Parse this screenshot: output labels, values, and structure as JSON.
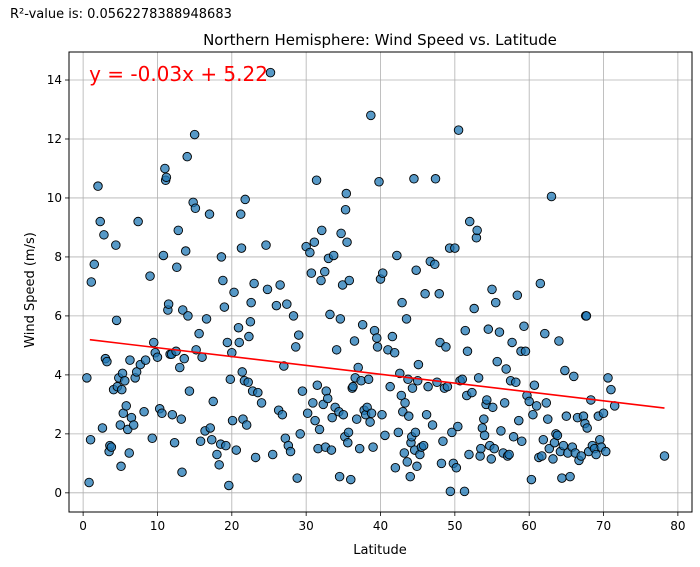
{
  "r2_text": "R²-value is: 0.0562278388948683",
  "chart_data": {
    "type": "scatter",
    "title": "Northern Hemisphere: Wind Speed vs. Latitude",
    "xlabel": "Latitude",
    "ylabel": "Wind Speed (m/s)",
    "xlim": [
      -1.9,
      81.9
    ],
    "ylim": [
      -0.65,
      14.95
    ],
    "xticks": [
      0,
      10,
      20,
      30,
      40,
      50,
      60,
      70,
      80
    ],
    "yticks": [
      0,
      2,
      4,
      6,
      8,
      10,
      12,
      14
    ],
    "grid": true,
    "regression": {
      "equation": "y = -0.03x + 5.22",
      "slope": -0.03,
      "intercept": 5.22,
      "x_range": [
        0.9,
        78.2
      ],
      "color": "#ff0000"
    },
    "point_color": "#1f77b4",
    "points": [
      [
        0.5,
        3.9
      ],
      [
        0.8,
        0.35
      ],
      [
        1.0,
        1.8
      ],
      [
        1.1,
        7.15
      ],
      [
        1.5,
        7.75
      ],
      [
        2.0,
        10.4
      ],
      [
        2.3,
        9.2
      ],
      [
        2.6,
        2.2
      ],
      [
        2.8,
        8.75
      ],
      [
        3.0,
        4.55
      ],
      [
        3.2,
        4.45
      ],
      [
        3.5,
        1.4
      ],
      [
        3.6,
        1.6
      ],
      [
        3.8,
        1.55
      ],
      [
        4.1,
        3.5
      ],
      [
        4.4,
        8.4
      ],
      [
        4.5,
        5.85
      ],
      [
        4.6,
        3.6
      ],
      [
        4.8,
        3.9
      ],
      [
        5.0,
        2.3
      ],
      [
        5.1,
        0.9
      ],
      [
        5.2,
        3.5
      ],
      [
        5.3,
        4.05
      ],
      [
        5.4,
        2.7
      ],
      [
        5.6,
        3.8
      ],
      [
        5.8,
        2.95
      ],
      [
        6.0,
        2.15
      ],
      [
        6.2,
        1.35
      ],
      [
        6.3,
        4.5
      ],
      [
        6.5,
        2.55
      ],
      [
        6.8,
        2.3
      ],
      [
        7.0,
        3.9
      ],
      [
        7.2,
        4.1
      ],
      [
        7.4,
        9.2
      ],
      [
        7.7,
        4.35
      ],
      [
        8.2,
        2.75
      ],
      [
        8.4,
        4.5
      ],
      [
        9.0,
        7.35
      ],
      [
        9.3,
        1.85
      ],
      [
        9.5,
        5.1
      ],
      [
        9.7,
        4.75
      ],
      [
        10.0,
        4.6
      ],
      [
        10.3,
        2.85
      ],
      [
        10.6,
        2.7
      ],
      [
        10.8,
        8.05
      ],
      [
        11.0,
        11.0
      ],
      [
        11.1,
        10.6
      ],
      [
        11.2,
        10.7
      ],
      [
        11.4,
        6.2
      ],
      [
        11.5,
        6.4
      ],
      [
        11.7,
        4.7
      ],
      [
        11.9,
        4.7
      ],
      [
        12.0,
        2.65
      ],
      [
        12.3,
        1.7
      ],
      [
        12.5,
        4.8
      ],
      [
        12.6,
        7.65
      ],
      [
        12.8,
        8.9
      ],
      [
        13.0,
        4.25
      ],
      [
        13.2,
        2.5
      ],
      [
        13.3,
        0.7
      ],
      [
        13.4,
        6.2
      ],
      [
        13.6,
        4.55
      ],
      [
        13.8,
        8.2
      ],
      [
        14.0,
        11.4
      ],
      [
        14.1,
        6.0
      ],
      [
        14.3,
        3.45
      ],
      [
        14.8,
        9.85
      ],
      [
        15.0,
        12.15
      ],
      [
        15.1,
        9.65
      ],
      [
        15.2,
        4.85
      ],
      [
        15.6,
        5.4
      ],
      [
        15.8,
        1.75
      ],
      [
        16.0,
        4.6
      ],
      [
        16.4,
        2.1
      ],
      [
        16.6,
        5.9
      ],
      [
        17.0,
        9.45
      ],
      [
        17.1,
        2.2
      ],
      [
        17.3,
        1.8
      ],
      [
        17.5,
        3.1
      ],
      [
        18.0,
        1.3
      ],
      [
        18.3,
        0.95
      ],
      [
        18.5,
        1.65
      ],
      [
        18.6,
        8.0
      ],
      [
        18.8,
        7.2
      ],
      [
        19.0,
        6.3
      ],
      [
        19.2,
        1.6
      ],
      [
        19.4,
        5.1
      ],
      [
        19.6,
        0.25
      ],
      [
        19.8,
        3.85
      ],
      [
        20.0,
        4.75
      ],
      [
        20.1,
        2.45
      ],
      [
        20.3,
        6.8
      ],
      [
        20.6,
        1.45
      ],
      [
        20.9,
        5.6
      ],
      [
        21.0,
        5.1
      ],
      [
        21.2,
        9.45
      ],
      [
        21.3,
        8.3
      ],
      [
        21.4,
        4.1
      ],
      [
        21.5,
        2.5
      ],
      [
        21.7,
        3.8
      ],
      [
        21.8,
        9.95
      ],
      [
        22.0,
        2.3
      ],
      [
        22.2,
        3.75
      ],
      [
        22.3,
        5.3
      ],
      [
        22.5,
        5.8
      ],
      [
        22.6,
        6.45
      ],
      [
        22.8,
        3.45
      ],
      [
        23.0,
        7.1
      ],
      [
        23.2,
        1.2
      ],
      [
        23.5,
        3.4
      ],
      [
        24.0,
        3.05
      ],
      [
        24.6,
        8.4
      ],
      [
        24.8,
        6.9
      ],
      [
        25.2,
        14.25
      ],
      [
        25.5,
        1.3
      ],
      [
        26.0,
        6.35
      ],
      [
        26.3,
        2.8
      ],
      [
        26.5,
        7.05
      ],
      [
        26.8,
        2.65
      ],
      [
        27.0,
        4.3
      ],
      [
        27.2,
        1.85
      ],
      [
        27.4,
        6.4
      ],
      [
        27.6,
        1.6
      ],
      [
        27.9,
        1.4
      ],
      [
        28.3,
        6.0
      ],
      [
        28.6,
        4.95
      ],
      [
        28.8,
        0.5
      ],
      [
        29.0,
        5.35
      ],
      [
        29.2,
        2.0
      ],
      [
        29.5,
        3.45
      ],
      [
        30.0,
        8.35
      ],
      [
        30.2,
        2.7
      ],
      [
        30.5,
        8.15
      ],
      [
        30.7,
        7.45
      ],
      [
        30.9,
        3.05
      ],
      [
        31.1,
        8.5
      ],
      [
        31.2,
        2.45
      ],
      [
        31.4,
        10.6
      ],
      [
        31.5,
        3.65
      ],
      [
        31.6,
        1.5
      ],
      [
        31.8,
        2.15
      ],
      [
        32.0,
        7.2
      ],
      [
        32.1,
        8.9
      ],
      [
        32.3,
        3.0
      ],
      [
        32.5,
        7.5
      ],
      [
        32.6,
        1.55
      ],
      [
        32.7,
        3.45
      ],
      [
        32.9,
        3.2
      ],
      [
        33.0,
        7.95
      ],
      [
        33.2,
        6.05
      ],
      [
        33.4,
        1.45
      ],
      [
        33.5,
        2.55
      ],
      [
        33.7,
        8.05
      ],
      [
        33.9,
        2.9
      ],
      [
        34.1,
        4.85
      ],
      [
        34.4,
        2.75
      ],
      [
        34.5,
        0.55
      ],
      [
        34.6,
        5.9
      ],
      [
        34.7,
        8.8
      ],
      [
        34.9,
        7.05
      ],
      [
        35.0,
        2.65
      ],
      [
        35.2,
        1.9
      ],
      [
        35.3,
        9.6
      ],
      [
        35.4,
        10.15
      ],
      [
        35.5,
        8.5
      ],
      [
        35.6,
        1.7
      ],
      [
        35.7,
        2.05
      ],
      [
        35.8,
        7.2
      ],
      [
        36.0,
        0.45
      ],
      [
        36.2,
        3.55
      ],
      [
        36.3,
        3.6
      ],
      [
        36.5,
        5.15
      ],
      [
        36.6,
        3.9
      ],
      [
        36.8,
        2.5
      ],
      [
        37.0,
        4.25
      ],
      [
        37.2,
        1.5
      ],
      [
        37.4,
        3.8
      ],
      [
        37.6,
        5.7
      ],
      [
        37.8,
        2.8
      ],
      [
        38.0,
        2.65
      ],
      [
        38.2,
        2.9
      ],
      [
        38.4,
        3.85
      ],
      [
        38.6,
        2.4
      ],
      [
        38.7,
        12.8
      ],
      [
        38.8,
        2.7
      ],
      [
        39.0,
        1.55
      ],
      [
        39.2,
        5.5
      ],
      [
        39.5,
        5.25
      ],
      [
        39.6,
        4.95
      ],
      [
        39.8,
        10.55
      ],
      [
        40.0,
        7.25
      ],
      [
        40.2,
        2.65
      ],
      [
        40.3,
        7.45
      ],
      [
        40.6,
        1.95
      ],
      [
        41.0,
        4.85
      ],
      [
        41.3,
        3.6
      ],
      [
        41.6,
        5.3
      ],
      [
        41.9,
        4.75
      ],
      [
        42.0,
        0.85
      ],
      [
        42.2,
        8.05
      ],
      [
        42.4,
        2.05
      ],
      [
        42.6,
        4.05
      ],
      [
        42.8,
        3.3
      ],
      [
        42.9,
        6.45
      ],
      [
        43.0,
        2.75
      ],
      [
        43.2,
        1.35
      ],
      [
        43.3,
        3.05
      ],
      [
        43.5,
        5.9
      ],
      [
        43.6,
        1.05
      ],
      [
        43.7,
        3.85
      ],
      [
        43.8,
        2.6
      ],
      [
        44.0,
        0.55
      ],
      [
        44.1,
        1.7
      ],
      [
        44.2,
        1.9
      ],
      [
        44.3,
        3.55
      ],
      [
        44.5,
        10.65
      ],
      [
        44.6,
        1.45
      ],
      [
        44.7,
        2.05
      ],
      [
        44.8,
        7.55
      ],
      [
        44.9,
        0.9
      ],
      [
        45.0,
        3.8
      ],
      [
        45.1,
        4.35
      ],
      [
        45.3,
        1.3
      ],
      [
        45.5,
        1.55
      ],
      [
        45.8,
        1.6
      ],
      [
        46.0,
        6.75
      ],
      [
        46.2,
        2.65
      ],
      [
        46.4,
        3.6
      ],
      [
        46.7,
        7.85
      ],
      [
        47.0,
        2.3
      ],
      [
        47.3,
        7.75
      ],
      [
        47.4,
        10.65
      ],
      [
        47.6,
        3.75
      ],
      [
        47.9,
        6.75
      ],
      [
        48.0,
        5.1
      ],
      [
        48.2,
        1.0
      ],
      [
        48.4,
        1.75
      ],
      [
        48.6,
        3.55
      ],
      [
        48.8,
        4.95
      ],
      [
        49.0,
        3.6
      ],
      [
        49.3,
        8.3
      ],
      [
        49.4,
        0.05
      ],
      [
        49.6,
        2.05
      ],
      [
        49.8,
        1.0
      ],
      [
        50.0,
        8.3
      ],
      [
        50.2,
        0.85
      ],
      [
        50.4,
        2.25
      ],
      [
        50.5,
        12.3
      ],
      [
        50.7,
        3.8
      ],
      [
        51.0,
        3.85
      ],
      [
        51.3,
        0.05
      ],
      [
        51.4,
        5.5
      ],
      [
        51.6,
        3.3
      ],
      [
        51.7,
        4.8
      ],
      [
        51.9,
        1.3
      ],
      [
        52.0,
        9.2
      ],
      [
        52.3,
        3.4
      ],
      [
        52.6,
        6.25
      ],
      [
        52.9,
        8.65
      ],
      [
        53.0,
        8.9
      ],
      [
        53.2,
        3.9
      ],
      [
        53.4,
        1.25
      ],
      [
        53.5,
        1.5
      ],
      [
        53.7,
        2.2
      ],
      [
        53.9,
        2.5
      ],
      [
        54.0,
        1.95
      ],
      [
        54.2,
        3.0
      ],
      [
        54.3,
        3.15
      ],
      [
        54.5,
        5.55
      ],
      [
        54.7,
        1.6
      ],
      [
        54.9,
        1.15
      ],
      [
        55.0,
        6.9
      ],
      [
        55.1,
        2.9
      ],
      [
        55.3,
        1.5
      ],
      [
        55.5,
        6.45
      ],
      [
        55.7,
        4.45
      ],
      [
        56.0,
        5.45
      ],
      [
        56.2,
        2.1
      ],
      [
        56.5,
        1.35
      ],
      [
        56.7,
        3.05
      ],
      [
        56.9,
        4.2
      ],
      [
        57.1,
        1.25
      ],
      [
        57.3,
        1.3
      ],
      [
        57.5,
        3.8
      ],
      [
        57.7,
        5.1
      ],
      [
        57.9,
        1.9
      ],
      [
        58.2,
        3.75
      ],
      [
        58.4,
        6.7
      ],
      [
        58.6,
        2.45
      ],
      [
        58.9,
        4.8
      ],
      [
        59.0,
        1.75
      ],
      [
        59.3,
        5.65
      ],
      [
        59.5,
        4.8
      ],
      [
        59.7,
        3.3
      ],
      [
        60.0,
        3.1
      ],
      [
        60.3,
        0.45
      ],
      [
        60.5,
        2.65
      ],
      [
        60.7,
        3.65
      ],
      [
        61.0,
        2.95
      ],
      [
        61.3,
        1.2
      ],
      [
        61.5,
        7.1
      ],
      [
        61.7,
        1.25
      ],
      [
        61.9,
        1.8
      ],
      [
        62.1,
        5.4
      ],
      [
        62.3,
        3.05
      ],
      [
        62.5,
        2.5
      ],
      [
        62.7,
        1.5
      ],
      [
        63.0,
        10.05
      ],
      [
        63.2,
        1.15
      ],
      [
        63.4,
        1.7
      ],
      [
        63.6,
        2.0
      ],
      [
        63.8,
        1.95
      ],
      [
        64.0,
        5.15
      ],
      [
        64.2,
        1.4
      ],
      [
        64.4,
        0.5
      ],
      [
        64.6,
        1.6
      ],
      [
        64.8,
        4.15
      ],
      [
        65.0,
        2.6
      ],
      [
        65.2,
        1.35
      ],
      [
        65.5,
        0.55
      ],
      [
        65.8,
        1.55
      ],
      [
        66.0,
        3.95
      ],
      [
        66.2,
        1.35
      ],
      [
        66.5,
        2.55
      ],
      [
        66.7,
        1.1
      ],
      [
        67.0,
        1.25
      ],
      [
        67.3,
        2.6
      ],
      [
        67.5,
        2.35
      ],
      [
        67.6,
        6.0
      ],
      [
        67.7,
        6.0
      ],
      [
        67.8,
        2.2
      ],
      [
        68.0,
        1.4
      ],
      [
        68.3,
        3.15
      ],
      [
        68.5,
        1.6
      ],
      [
        68.8,
        1.5
      ],
      [
        69.0,
        1.3
      ],
      [
        69.3,
        2.6
      ],
      [
        69.5,
        1.8
      ],
      [
        69.7,
        1.55
      ],
      [
        70.0,
        2.7
      ],
      [
        70.3,
        1.4
      ],
      [
        70.6,
        3.9
      ],
      [
        71.0,
        3.5
      ],
      [
        71.5,
        2.95
      ],
      [
        78.2,
        1.25
      ]
    ]
  }
}
